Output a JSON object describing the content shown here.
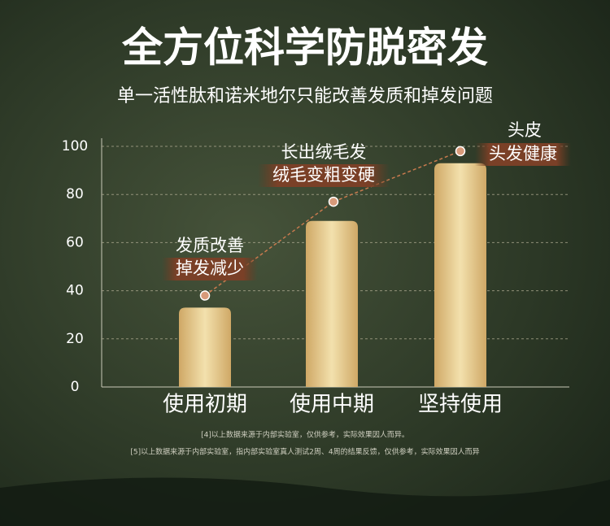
{
  "chart_data": {
    "type": "bar",
    "title": "全方位科学防脱密发",
    "subtitle": "单一活性肽和诺米地尔只能改善发质和掉发问题",
    "categories": [
      "使用初期",
      "使用中期",
      "坚持使用"
    ],
    "values": [
      33,
      69,
      93
    ],
    "trend_values": [
      38,
      77,
      98
    ],
    "color": "#e8cf90",
    "trend_color": "#c87a4e",
    "ylim": [
      0,
      100
    ],
    "yticks": [
      0,
      20,
      40,
      60,
      80,
      100
    ],
    "grid": true,
    "annotations": [
      [
        "发质改善",
        "掉发减少"
      ],
      [
        "长出绒毛发",
        "绒毛变粗变硬"
      ],
      [
        "头皮",
        "头发健康"
      ]
    ],
    "footnotes": [
      "[4]以上数据来源于内部实验室，仅供参考，实际效果因人而异。",
      "[5]以上数据来源于内部实验室，指内部实验室真人测试2周、4周的结果反馈，仅供参考，实际效果因人而异"
    ]
  }
}
